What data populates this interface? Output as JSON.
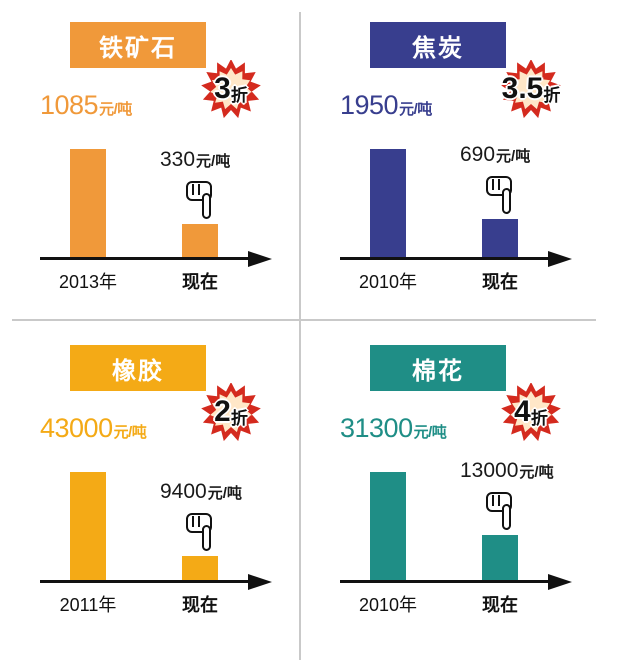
{
  "colors": {
    "orange": "#F0993A",
    "navy": "#383E8E",
    "amber": "#F4AA16",
    "teal": "#1F8E86",
    "burst_red": "#D42A1E",
    "axis": "#111111"
  },
  "icons": [
    "discount-burst-icon",
    "pointing-hand-icon"
  ],
  "chart_data": [
    {
      "type": "bar",
      "title": "铁矿石",
      "color": "#F0993A",
      "categories": [
        "2013年",
        "现在"
      ],
      "values": [
        1085,
        330
      ],
      "value_labels": [
        "1085",
        "330"
      ],
      "unit": "元/吨",
      "discount": {
        "number": "3",
        "suffix": "折"
      }
    },
    {
      "type": "bar",
      "title": "焦炭",
      "color": "#383E8E",
      "categories": [
        "2010年",
        "现在"
      ],
      "values": [
        1950,
        690
      ],
      "value_labels": [
        "1950",
        "690"
      ],
      "unit": "元/吨",
      "discount": {
        "number": "3.5",
        "suffix": "折"
      }
    },
    {
      "type": "bar",
      "title": "橡胶",
      "color": "#F4AA16",
      "categories": [
        "2011年",
        "现在"
      ],
      "values": [
        43000,
        9400
      ],
      "value_labels": [
        "43000",
        "9400"
      ],
      "unit": "元/吨",
      "discount": {
        "number": "2",
        "suffix": "折"
      }
    },
    {
      "type": "bar",
      "title": "棉花",
      "color": "#1F8E86",
      "categories": [
        "2010年",
        "现在"
      ],
      "values": [
        31300,
        13000
      ],
      "value_labels": [
        "31300",
        "13000"
      ],
      "unit": "元/吨",
      "discount": {
        "number": "4",
        "suffix": "折"
      }
    }
  ]
}
